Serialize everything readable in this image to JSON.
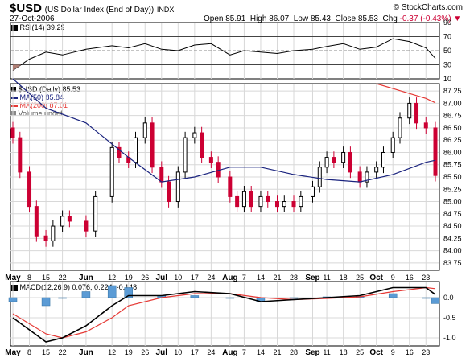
{
  "header": {
    "symbol": "$USD",
    "name": "(US Dollar Index (End of Day))",
    "exchange": "INDX",
    "date": "27-Oct-2006",
    "open_label": "Open",
    "open": "85.91",
    "high_label": "High",
    "high": "86.07",
    "low_label": "Low",
    "low": "85.43",
    "close_label": "Close",
    "close": "85.53",
    "chg_label": "Chg",
    "chg": "-0.37 (-0.43%)",
    "watermark": "© StockCharts.com"
  },
  "colors": {
    "up": "#000000",
    "down": "#cc0033",
    "ma50": "#1a237e",
    "ma200": "#e53935",
    "hist": "#5b9bd5",
    "grid": "#d8d8d8",
    "rsi_fill": "#b07f75"
  },
  "chart_data": [
    {
      "type": "line",
      "panel": "rsi",
      "title": "RSI(14) 39.29",
      "y_ticks": [
        10,
        30,
        50,
        70,
        90
      ],
      "ylim": [
        10,
        90
      ],
      "reference_lines": [
        30,
        50,
        70
      ],
      "x": [
        "May 1",
        "May 8",
        "May 15",
        "May 22",
        "Jun 1",
        "Jun 12",
        "Jun 19",
        "Jun 26",
        "Jul 3",
        "Jul 10",
        "Jul 17",
        "Jul 24",
        "Aug 1",
        "Aug 7",
        "Aug 14",
        "Aug 21",
        "Aug 28",
        "Sep 5",
        "Sep 11",
        "Sep 18",
        "Sep 25",
        "Oct 2",
        "Oct 9",
        "Oct 16",
        "Oct 23",
        "Oct 27"
      ],
      "values": [
        22,
        38,
        48,
        44,
        52,
        57,
        54,
        60,
        52,
        50,
        58,
        60,
        44,
        50,
        48,
        46,
        50,
        52,
        56,
        60,
        52,
        55,
        67,
        63,
        54,
        39
      ]
    },
    {
      "type": "line",
      "panel": "price",
      "legend": [
        "$USD (Daily) 85.53",
        "MA(50) 85.84",
        "MA(200) 87.01",
        "Volume undef"
      ],
      "y_ticks": [
        83.75,
        84.0,
        84.25,
        84.5,
        84.75,
        85.0,
        85.25,
        85.5,
        85.75,
        86.0,
        86.25,
        86.5,
        86.75,
        87.0,
        87.25
      ],
      "ylim": [
        83.6,
        87.4
      ],
      "x_ticks": [
        "May",
        "8",
        "15",
        "22",
        "Jun",
        "12",
        "19",
        "26",
        "Jul",
        "10",
        "17",
        "24",
        "Aug",
        "7",
        "14",
        "21",
        "28",
        "Sep",
        "11",
        "18",
        "25",
        "Oct",
        "9",
        "16",
        "23"
      ],
      "series": [
        {
          "name": "$USD (Daily) 85.53",
          "x": [
            "May 1",
            "May 4",
            "May 8",
            "May 11",
            "May 15",
            "May 18",
            "May 22",
            "May 25",
            "Jun 1",
            "Jun 5",
            "Jun 12",
            "Jun 15",
            "Jun 19",
            "Jun 22",
            "Jun 26",
            "Jun 29",
            "Jul 3",
            "Jul 6",
            "Jul 10",
            "Jul 13",
            "Jul 17",
            "Jul 20",
            "Jul 24",
            "Jul 27",
            "Aug 1",
            "Aug 4",
            "Aug 7",
            "Aug 10",
            "Aug 14",
            "Aug 17",
            "Aug 21",
            "Aug 24",
            "Aug 28",
            "Aug 31",
            "Sep 5",
            "Sep 8",
            "Sep 11",
            "Sep 14",
            "Sep 18",
            "Sep 21",
            "Sep 25",
            "Sep 28",
            "Oct 2",
            "Oct 5",
            "Oct 9",
            "Oct 12",
            "Oct 16",
            "Oct 19",
            "Oct 23",
            "Oct 27"
          ],
          "values": [
            86.3,
            85.6,
            84.9,
            84.3,
            84.2,
            84.5,
            84.7,
            84.6,
            84.4,
            85.1,
            86.1,
            85.9,
            85.8,
            86.3,
            86.6,
            85.7,
            85.4,
            85.0,
            85.6,
            86.3,
            86.4,
            85.9,
            85.8,
            85.5,
            85.1,
            84.9,
            85.2,
            84.9,
            85.1,
            85.0,
            84.9,
            85.0,
            84.9,
            85.1,
            85.3,
            85.7,
            85.9,
            85.8,
            86.0,
            85.6,
            85.4,
            85.6,
            85.7,
            86.0,
            86.3,
            86.7,
            87.0,
            86.6,
            86.5,
            85.53
          ]
        },
        {
          "name": "MA(50) 85.84",
          "x": [
            "May 1",
            "May 15",
            "Jun 1",
            "Jun 19",
            "Jul 3",
            "Jul 17",
            "Aug 1",
            "Aug 14",
            "Aug 28",
            "Sep 11",
            "Sep 25",
            "Oct 9",
            "Oct 23",
            "Oct 27"
          ],
          "values": [
            87.5,
            86.9,
            86.6,
            85.9,
            85.4,
            85.5,
            85.7,
            85.7,
            85.55,
            85.45,
            85.4,
            85.55,
            85.8,
            85.84
          ]
        },
        {
          "name": "MA(200) 87.01",
          "x": [
            "Oct 2",
            "Oct 9",
            "Oct 16",
            "Oct 23",
            "Oct 27"
          ],
          "values": [
            87.4,
            87.3,
            87.2,
            87.1,
            87.01
          ]
        }
      ]
    },
    {
      "type": "line",
      "panel": "macd",
      "title": "MACD(12,26,9) 0.076, 0.224, -0.148",
      "y_ticks": [
        -1.0,
        -0.5,
        0.0
      ],
      "ylim": [
        -1.2,
        0.4
      ],
      "x_ticks": [
        "May",
        "8",
        "15",
        "22",
        "Jun",
        "12",
        "19",
        "26",
        "Jul",
        "10",
        "17",
        "24",
        "Aug",
        "7",
        "14",
        "21",
        "28",
        "Sep",
        "11",
        "18",
        "25",
        "Oct",
        "9",
        "16",
        "23"
      ],
      "series": [
        {
          "name": "MACD",
          "x": [
            "May 1",
            "May 15",
            "May 22",
            "Jun 1",
            "Jun 12",
            "Jun 19",
            "Jul 3",
            "Jul 17",
            "Aug 1",
            "Aug 14",
            "Aug 28",
            "Sep 11",
            "Sep 25",
            "Oct 9",
            "Oct 23",
            "Oct 27"
          ],
          "values": [
            -0.5,
            -1.1,
            -1.0,
            -0.7,
            -0.2,
            0.05,
            0.05,
            0.15,
            0.1,
            -0.1,
            -0.05,
            0.0,
            0.05,
            0.25,
            0.25,
            0.076
          ]
        },
        {
          "name": "Signal",
          "x": [
            "May 1",
            "May 15",
            "May 22",
            "Jun 1",
            "Jun 12",
            "Jun 19",
            "Jul 3",
            "Jul 17",
            "Aug 1",
            "Aug 14",
            "Aug 28",
            "Sep 11",
            "Sep 25",
            "Oct 9",
            "Oct 23",
            "Oct 27"
          ],
          "values": [
            -0.4,
            -0.9,
            -1.0,
            -0.85,
            -0.5,
            -0.2,
            0.0,
            0.1,
            0.1,
            0.0,
            -0.05,
            -0.02,
            0.02,
            0.15,
            0.25,
            0.224
          ]
        },
        {
          "name": "Histogram",
          "x": [
            "May 1",
            "May 15",
            "May 22",
            "Jun 1",
            "Jun 12",
            "Jun 19",
            "Jul 3",
            "Jul 17",
            "Aug 1",
            "Aug 14",
            "Aug 28",
            "Sep 11",
            "Sep 25",
            "Oct 9",
            "Oct 23",
            "Oct 27"
          ],
          "values": [
            -0.1,
            -0.2,
            0.0,
            0.15,
            0.3,
            0.25,
            0.05,
            0.05,
            0.0,
            -0.1,
            0.0,
            0.02,
            0.03,
            0.1,
            0.0,
            -0.148
          ]
        }
      ]
    }
  ]
}
